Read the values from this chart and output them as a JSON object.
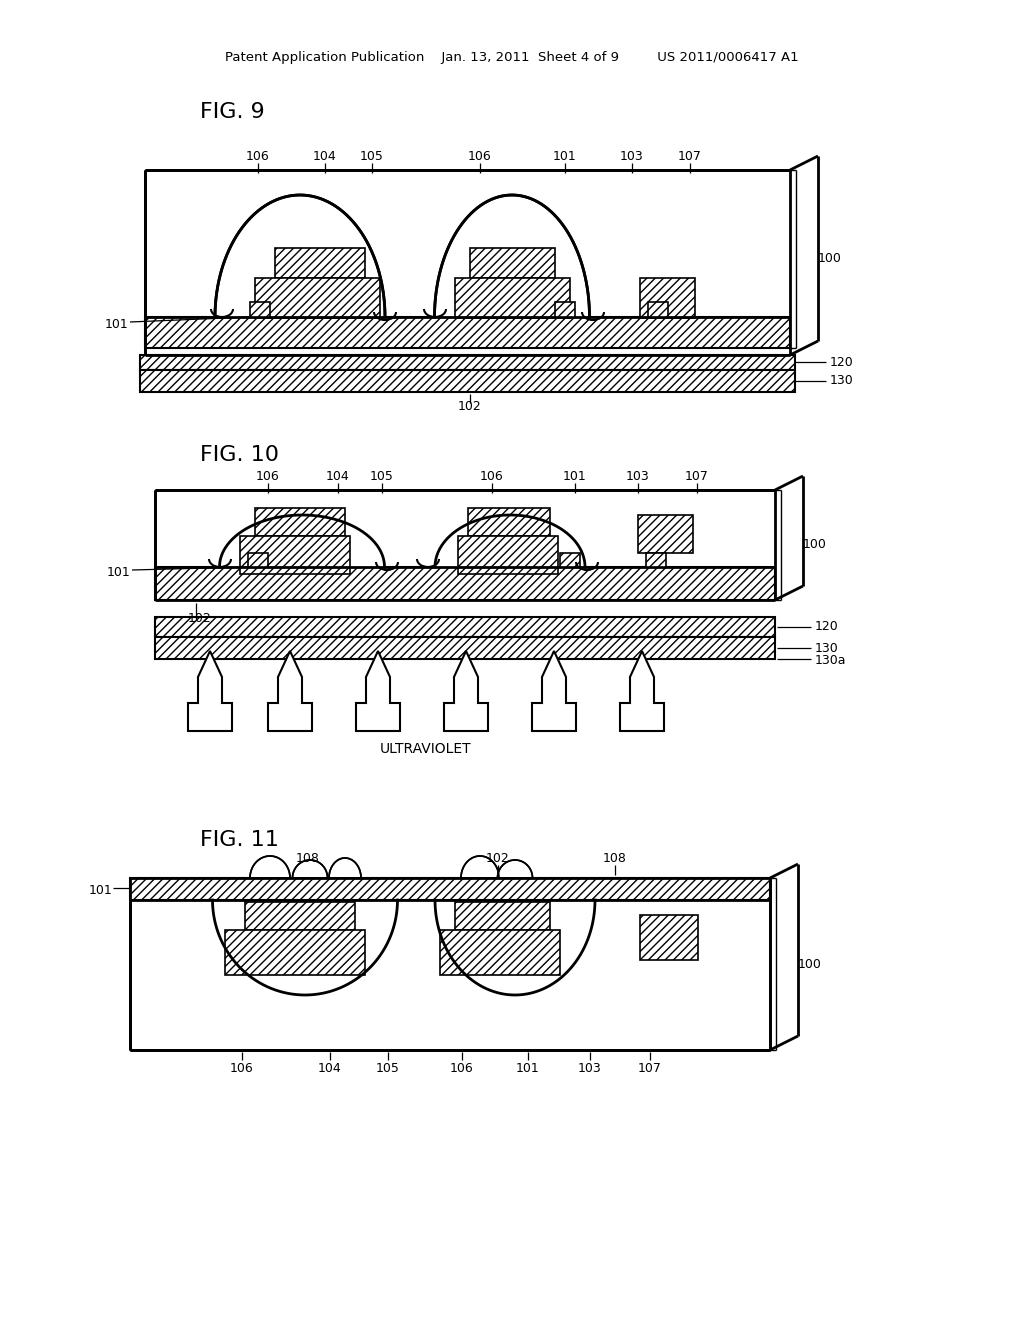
{
  "bg": "#ffffff",
  "header": "Patent Application Publication    Jan. 13, 2011  Sheet 4 of 9         US 2011/0006417 A1",
  "fig9": "FIG. 9",
  "fig10": "FIG. 10",
  "fig11": "FIG. 11",
  "uv": "ULTRAVIOLET"
}
